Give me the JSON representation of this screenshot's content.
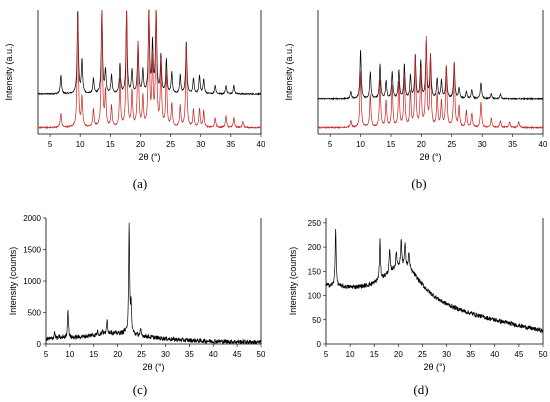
{
  "panels": [
    {
      "id": "a",
      "label": "(a)"
    },
    {
      "id": "b",
      "label": "(b)"
    },
    {
      "id": "c",
      "label": "(c)"
    },
    {
      "id": "d",
      "label": "(d)"
    }
  ],
  "chart_data": [
    {
      "type": "line",
      "panel": "(a)",
      "xlabel": "2θ (°)",
      "ylabel": "Intensity (a.u.)",
      "xlim": [
        3,
        40
      ],
      "xticks": [
        5,
        10,
        15,
        20,
        25,
        30,
        35,
        40
      ],
      "yticks": [],
      "series": [
        {
          "color": "#000000",
          "baseline": 0.3,
          "peaks": [
            [
              6.8,
              0.22
            ],
            [
              9.6,
              1.0
            ],
            [
              10.3,
              0.4
            ],
            [
              12.2,
              0.18
            ],
            [
              13.6,
              1.0
            ],
            [
              14.2,
              0.28
            ],
            [
              15.2,
              0.22
            ],
            [
              16.6,
              0.35
            ],
            [
              17.7,
              1.0
            ],
            [
              18.6,
              0.28
            ],
            [
              19.6,
              0.6
            ],
            [
              20.4,
              0.28
            ],
            [
              21.4,
              1.0
            ],
            [
              22.0,
              0.6
            ],
            [
              22.6,
              1.0
            ],
            [
              23.4,
              0.45
            ],
            [
              24.3,
              0.4
            ],
            [
              25.2,
              0.25
            ],
            [
              26.6,
              0.22
            ],
            [
              27.6,
              0.62
            ],
            [
              28.8,
              0.18
            ],
            [
              29.8,
              0.22
            ],
            [
              30.5,
              0.18
            ],
            [
              32.4,
              0.1
            ],
            [
              34.2,
              0.1
            ],
            [
              35.5,
              0.1
            ]
          ]
        },
        {
          "color": "#cc2222",
          "baseline": 0.02,
          "peaks": [
            [
              6.8,
              0.12
            ],
            [
              9.6,
              0.95
            ],
            [
              10.3,
              0.25
            ],
            [
              12.2,
              0.15
            ],
            [
              13.6,
              1.0
            ],
            [
              14.2,
              0.3
            ],
            [
              15.2,
              0.18
            ],
            [
              16.6,
              0.4
            ],
            [
              17.7,
              1.0
            ],
            [
              18.6,
              0.3
            ],
            [
              19.6,
              0.72
            ],
            [
              20.4,
              0.25
            ],
            [
              21.4,
              1.0
            ],
            [
              22.0,
              0.55
            ],
            [
              22.6,
              1.0
            ],
            [
              23.4,
              0.55
            ],
            [
              24.3,
              0.48
            ],
            [
              25.2,
              0.2
            ],
            [
              26.6,
              0.18
            ],
            [
              27.6,
              0.72
            ],
            [
              28.8,
              0.15
            ],
            [
              29.8,
              0.16
            ],
            [
              30.5,
              0.14
            ],
            [
              32.4,
              0.08
            ],
            [
              34.2,
              0.1
            ],
            [
              35.5,
              0.08
            ],
            [
              37.0,
              0.05
            ]
          ]
        }
      ]
    },
    {
      "type": "line",
      "panel": "(b)",
      "xlabel": "2θ (°)",
      "ylabel": "Intensity (a.u.)",
      "xlim": [
        3,
        40
      ],
      "xticks": [
        5,
        10,
        15,
        20,
        25,
        30,
        35,
        40
      ],
      "yticks": [],
      "series": [
        {
          "color": "#000000",
          "baseline": 0.26,
          "peaks": [
            [
              8.4,
              0.08
            ],
            [
              10.0,
              0.55
            ],
            [
              11.6,
              0.3
            ],
            [
              13.2,
              0.38
            ],
            [
              14.2,
              0.2
            ],
            [
              15.2,
              0.3
            ],
            [
              16.3,
              0.32
            ],
            [
              17.2,
              0.38
            ],
            [
              18.2,
              0.26
            ],
            [
              19.0,
              0.48
            ],
            [
              19.9,
              0.42
            ],
            [
              20.8,
              0.62
            ],
            [
              21.5,
              0.48
            ],
            [
              22.6,
              0.22
            ],
            [
              23.3,
              0.2
            ],
            [
              24.1,
              0.36
            ],
            [
              25.4,
              0.4
            ],
            [
              26.2,
              0.12
            ],
            [
              27.4,
              0.08
            ],
            [
              28.3,
              0.1
            ],
            [
              29.8,
              0.18
            ],
            [
              31.5,
              0.06
            ],
            [
              33.0,
              0.05
            ]
          ]
        },
        {
          "color": "#cc2222",
          "baseline": 0.02,
          "peaks": [
            [
              8.4,
              0.06
            ],
            [
              10.0,
              0.48
            ],
            [
              11.6,
              0.28
            ],
            [
              13.2,
              0.4
            ],
            [
              14.2,
              0.22
            ],
            [
              15.2,
              0.35
            ],
            [
              16.3,
              0.38
            ],
            [
              17.2,
              0.45
            ],
            [
              18.2,
              0.3
            ],
            [
              19.0,
              0.58
            ],
            [
              19.9,
              0.48
            ],
            [
              20.8,
              0.75
            ],
            [
              21.5,
              0.6
            ],
            [
              22.6,
              0.28
            ],
            [
              23.3,
              0.22
            ],
            [
              24.1,
              0.52
            ],
            [
              25.4,
              0.55
            ],
            [
              26.2,
              0.18
            ],
            [
              27.4,
              0.14
            ],
            [
              28.3,
              0.12
            ],
            [
              29.8,
              0.22
            ],
            [
              31.5,
              0.08
            ],
            [
              33.0,
              0.06
            ],
            [
              34.5,
              0.05
            ],
            [
              36.0,
              0.05
            ]
          ]
        }
      ]
    },
    {
      "type": "line",
      "panel": "(c)",
      "xlabel": "2θ (°)",
      "ylabel": "Intensity (counts)",
      "xlim": [
        5,
        50
      ],
      "ylim": [
        0,
        2000
      ],
      "xticks": [
        5,
        10,
        15,
        20,
        25,
        30,
        35,
        40,
        45,
        50
      ],
      "yticks": [
        0,
        500,
        1000,
        1500,
        2000
      ],
      "series": [
        {
          "color": "#000000",
          "baseline_start": 50,
          "hump": [
            20,
            5,
            130
          ],
          "baseline_end": 20,
          "peaks": [
            [
              6.8,
              200
            ],
            [
              7.8,
              120
            ],
            [
              8.6,
              90
            ],
            [
              9.6,
              560
            ],
            [
              14.6,
              150
            ],
            [
              15.8,
              200
            ],
            [
              16.8,
              220
            ],
            [
              17.8,
              380
            ],
            [
              18.6,
              200
            ],
            [
              21.4,
              200
            ],
            [
              22.4,
              1880
            ],
            [
              22.8,
              600
            ],
            [
              24.8,
              220
            ]
          ]
        }
      ]
    },
    {
      "type": "line",
      "panel": "(d)",
      "xlabel": "2θ (°)",
      "ylabel": "Intensity (counts)",
      "xlim": [
        5,
        50
      ],
      "ylim": [
        0,
        260
      ],
      "xticks": [
        5,
        10,
        15,
        20,
        25,
        30,
        35,
        40,
        45,
        50
      ],
      "yticks": [
        0,
        50,
        100,
        150,
        200,
        250
      ],
      "series": [
        {
          "color": "#000000",
          "baseline_start": 115,
          "hump": [
            21,
            3,
            80
          ],
          "baseline_end": 25,
          "peaks": [
            [
              7.0,
              240
            ],
            [
              16.2,
              215
            ],
            [
              18.2,
              195
            ],
            [
              19.6,
              190
            ],
            [
              20.6,
              215
            ],
            [
              21.4,
              210
            ],
            [
              22.2,
              190
            ]
          ]
        }
      ]
    }
  ]
}
